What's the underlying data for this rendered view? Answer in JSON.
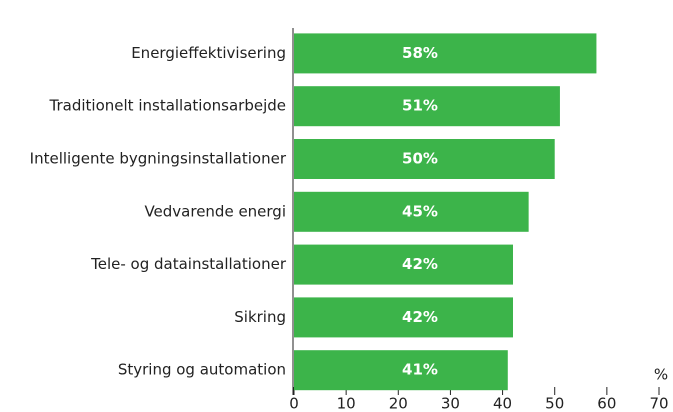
{
  "chart_data": {
    "type": "bar",
    "orientation": "horizontal",
    "categories": [
      "Energieffektivisering",
      "Traditionelt installationsarbejde",
      "Intelligente bygningsinstallationer",
      "Vedvarende energi",
      "Tele- og datainstallationer",
      "Sikring",
      "Styring og automation"
    ],
    "values": [
      58,
      51,
      50,
      45,
      42,
      42,
      41
    ],
    "value_labels": [
      "58%",
      "51%",
      "50%",
      "45%",
      "42%",
      "42%",
      "41%"
    ],
    "color": "#3cb44a",
    "x_axis_label": "%",
    "xlim": [
      0,
      70
    ],
    "xticks": [
      0,
      10,
      20,
      30,
      40,
      50,
      60,
      70
    ]
  }
}
